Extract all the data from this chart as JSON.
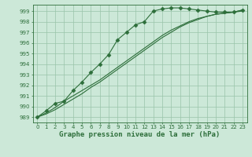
{
  "background_color": "#cce8d8",
  "grid_color": "#99c4aa",
  "line_color": "#2d6e3a",
  "title": "Graphe pression niveau de la mer (hPa)",
  "ylabel_vals": [
    989,
    990,
    991,
    992,
    993,
    994,
    995,
    996,
    997,
    998,
    999
  ],
  "xlim": [
    -0.5,
    23.5
  ],
  "ylim": [
    988.5,
    999.6
  ],
  "series": [
    {
      "x": [
        0,
        1,
        2,
        3,
        4,
        5,
        6,
        7,
        8,
        9,
        10,
        11,
        12,
        13,
        14,
        15,
        16,
        17,
        18,
        19,
        20,
        21,
        22,
        23
      ],
      "y": [
        989.0,
        989.6,
        990.3,
        990.5,
        991.5,
        992.3,
        993.2,
        994.0,
        994.9,
        996.3,
        997.0,
        997.7,
        998.0,
        999.0,
        999.2,
        999.3,
        999.3,
        999.2,
        999.1,
        999.0,
        998.9,
        998.9,
        998.9,
        999.1
      ],
      "marker": "D",
      "markersize": 2.5
    },
    {
      "x": [
        0,
        1,
        2,
        3,
        4,
        5,
        6,
        7,
        8,
        9,
        10,
        11,
        12,
        13,
        14,
        15,
        16,
        17,
        18,
        19,
        20,
        21,
        22,
        23
      ],
      "y": [
        989.0,
        989.4,
        989.9,
        990.5,
        991.0,
        991.5,
        992.0,
        992.5,
        993.1,
        993.7,
        994.3,
        994.9,
        995.5,
        996.1,
        996.7,
        997.2,
        997.6,
        998.0,
        998.3,
        998.5,
        998.7,
        998.8,
        998.9,
        999.1
      ],
      "marker": null,
      "markersize": 0
    },
    {
      "x": [
        0,
        1,
        2,
        3,
        4,
        5,
        6,
        7,
        8,
        9,
        10,
        11,
        12,
        13,
        14,
        15,
        16,
        17,
        18,
        19,
        20,
        21,
        22,
        23
      ],
      "y": [
        989.0,
        989.3,
        989.7,
        990.2,
        990.7,
        991.2,
        991.8,
        992.3,
        992.9,
        993.5,
        994.1,
        994.7,
        995.3,
        995.9,
        996.5,
        997.0,
        997.5,
        997.9,
        998.2,
        998.5,
        998.7,
        998.8,
        998.9,
        999.0
      ],
      "marker": null,
      "markersize": 0
    }
  ],
  "xticks": [
    0,
    1,
    2,
    3,
    4,
    5,
    6,
    7,
    8,
    9,
    10,
    11,
    12,
    13,
    14,
    15,
    16,
    17,
    18,
    19,
    20,
    21,
    22,
    23
  ],
  "xtick_labels": [
    "0",
    "1",
    "2",
    "3",
    "4",
    "5",
    "6",
    "7",
    "8",
    "9",
    "10",
    "11",
    "12",
    "13",
    "14",
    "15",
    "16",
    "17",
    "18",
    "19",
    "20",
    "21",
    "22",
    "23"
  ],
  "title_fontsize": 6.5,
  "tick_fontsize": 5.0,
  "fig_width": 3.2,
  "fig_height": 2.0,
  "dpi": 100
}
